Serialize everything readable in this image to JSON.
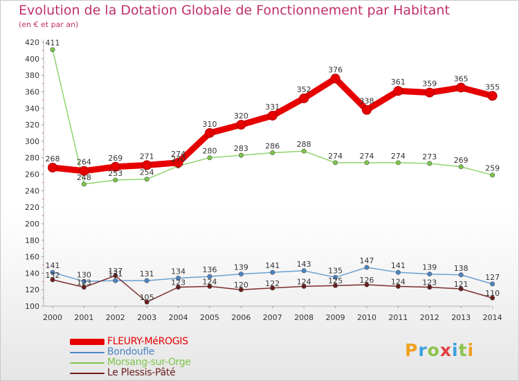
{
  "chart_data": {
    "type": "line",
    "title": "Evolution de la Dotation Globale de Fonctionnement par Habitant",
    "subtitle": "(en € et par an)",
    "xlabel": "",
    "ylabel": "",
    "ylim": [
      100,
      420
    ],
    "yticks": [
      100,
      120,
      140,
      160,
      180,
      200,
      220,
      240,
      260,
      280,
      300,
      320,
      340,
      360,
      380,
      400,
      420
    ],
    "categories": [
      "2000",
      "2001",
      "2002",
      "2003",
      "2004",
      "2005",
      "2006",
      "2007",
      "2008",
      "2009",
      "2010",
      "2011",
      "2012",
      "2013",
      "2014"
    ],
    "grid": false,
    "legend_position": "bottom-left",
    "series": [
      {
        "name": "Morsang-sur-Orge",
        "color": "#8fd36b",
        "marker": "#7cc64a",
        "values": [
          411,
          248,
          253,
          254,
          270,
          280,
          283,
          286,
          288,
          274,
          274,
          274,
          273,
          269,
          259
        ]
      },
      {
        "name": "Bondoufle",
        "color": "#6a9fd0",
        "marker": "#4a85c2",
        "values": [
          141,
          130,
          131,
          131,
          134,
          136,
          139,
          141,
          143,
          135,
          147,
          141,
          139,
          138,
          127
        ]
      },
      {
        "name": "Le Plessis-Pâté",
        "color": "#7a2a2a",
        "marker": "#6b1c1c",
        "values": [
          132,
          123,
          137,
          105,
          123,
          124,
          120,
          122,
          124,
          125,
          126,
          124,
          123,
          121,
          110
        ]
      },
      {
        "name": "FLEURY-MéROGIS",
        "color": "#e60000",
        "marker": "#e60000",
        "highlight": true,
        "values": [
          268,
          264,
          269,
          271,
          274,
          310,
          320,
          331,
          352,
          376,
          338,
          361,
          359,
          365,
          355
        ]
      }
    ],
    "data_labels": {
      "FLEURY-MéROGIS": [
        "268",
        "264",
        "269",
        "271",
        "274",
        "310",
        "320",
        "331",
        "352",
        "376",
        "338",
        "361",
        "359",
        "365",
        "355"
      ],
      "Morsang-sur-Orge": [
        "411",
        "248",
        "253",
        "254",
        "270",
        "280",
        "283",
        "286",
        "288",
        "274",
        "274",
        "274",
        "273",
        "269",
        "259"
      ],
      "Bondoufle": [
        "141",
        "130",
        "131",
        "131",
        "134",
        "136",
        "139",
        "141",
        "143",
        "135",
        "147",
        "141",
        "139",
        "138",
        "127"
      ],
      "Le Plessis-Pâté": [
        "132",
        "123",
        "137",
        "105",
        "123",
        "124",
        "120",
        "122",
        "124",
        "125",
        "126",
        "124",
        "123",
        "121",
        "110"
      ]
    }
  },
  "legend": {
    "items": [
      {
        "label": "FLEURY-MéROGIS",
        "color": "#e60000"
      },
      {
        "label": "Bondoufle",
        "color": "#4a85c2"
      },
      {
        "label": "Morsang-sur-Orge",
        "color": "#7cc64a"
      },
      {
        "label": "Le Plessis-Pâté",
        "color": "#6b1c1c"
      }
    ]
  },
  "logo": {
    "letters": [
      "P",
      "r",
      "o",
      "x",
      "i",
      "t",
      "i"
    ],
    "colors": [
      "#f0a020",
      "#3ba0e0",
      "#8bc34a",
      "#e04040",
      "#3ba0e0",
      "#8bc34a",
      "#f0a020"
    ]
  }
}
